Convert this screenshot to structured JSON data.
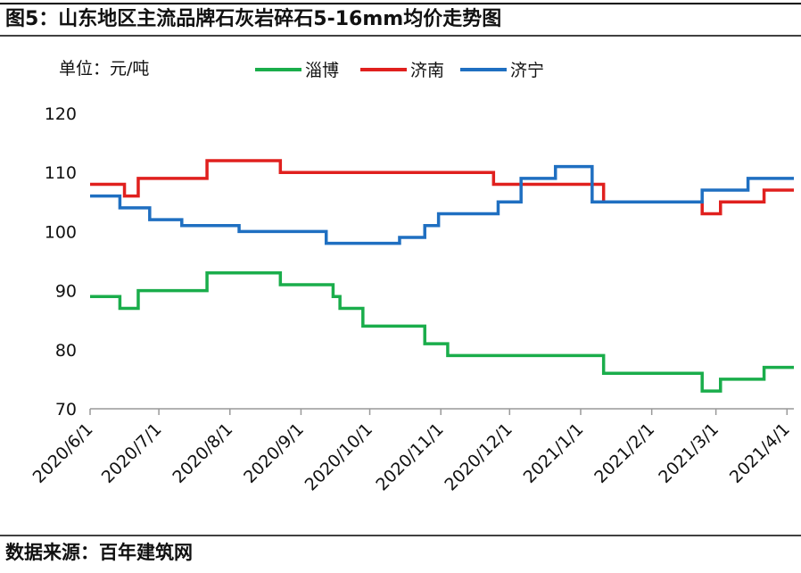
{
  "chart_data": {
    "type": "line",
    "step": true,
    "title": "图5：山东地区主流品牌石灰岩碎石5-16mm均价走势图",
    "unit_label": "单位：元/吨",
    "source": "数据来源：百年建筑网",
    "xlim": [
      "2020/6/1",
      "2021/4/4"
    ],
    "xticks": [
      "2020/6/1",
      "2020/7/1",
      "2020/8/1",
      "2020/9/1",
      "2020/10/1",
      "2020/11/1",
      "2020/12/1",
      "2021/1/1",
      "2021/2/1",
      "2021/3/1",
      "2021/4/1"
    ],
    "ylim": [
      70,
      120
    ],
    "yticks": [
      70,
      80,
      90,
      100,
      110,
      120
    ],
    "series": [
      {
        "name": "淄博",
        "color": "#1aad4b",
        "x": [
          "2020/6/1",
          "2020/6/14",
          "2020/6/22",
          "2020/7/22",
          "2020/8/23",
          "2020/9/15",
          "2020/9/18",
          "2020/9/28",
          "2020/10/25",
          "2020/11/4",
          "2021/1/11",
          "2021/2/23",
          "2021/3/3",
          "2021/3/22",
          "2021/4/4"
        ],
        "values": [
          89,
          87,
          90,
          93,
          91,
          89,
          87,
          84,
          81,
          79,
          76,
          73,
          75,
          77,
          77
        ]
      },
      {
        "name": "济南",
        "color": "#e0201e",
        "x": [
          "2020/6/1",
          "2020/6/16",
          "2020/6/22",
          "2020/7/22",
          "2020/8/23",
          "2020/11/24",
          "2021/1/11",
          "2021/2/23",
          "2021/3/3",
          "2021/3/22",
          "2021/4/4"
        ],
        "values": [
          108,
          106,
          109,
          112,
          110,
          108,
          105,
          103,
          105,
          107,
          107
        ]
      },
      {
        "name": "济宁",
        "color": "#1f6fc1",
        "x": [
          "2020/6/1",
          "2020/6/14",
          "2020/6/27",
          "2020/7/11",
          "2020/8/5",
          "2020/9/12",
          "2020/10/14",
          "2020/10/25",
          "2020/10/31",
          "2020/11/26",
          "2020/12/6",
          "2020/12/21",
          "2021/1/6",
          "2021/2/23",
          "2021/3/15",
          "2021/4/4"
        ],
        "values": [
          106,
          104,
          102,
          101,
          100,
          98,
          99,
          101,
          103,
          105,
          109,
          111,
          105,
          107,
          109,
          109
        ]
      }
    ]
  }
}
